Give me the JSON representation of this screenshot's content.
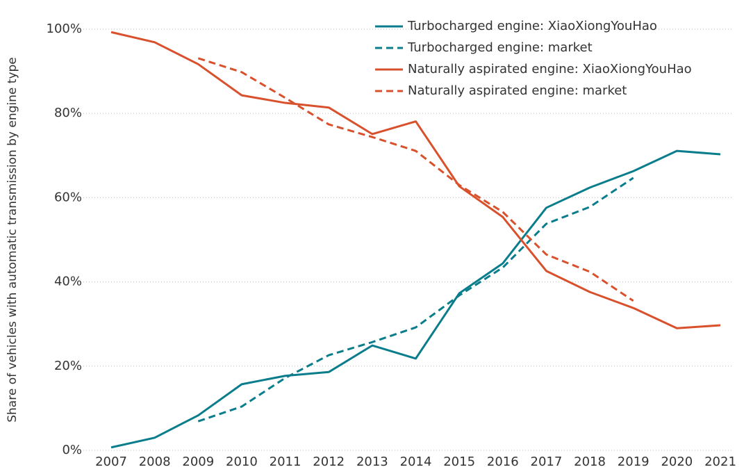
{
  "chart_data": {
    "type": "line",
    "y_label": "Share of vehicles with automatic transmission by engine type",
    "x": [
      2007,
      2008,
      2009,
      2010,
      2011,
      2012,
      2013,
      2014,
      2015,
      2016,
      2017,
      2018,
      2019,
      2020,
      2021
    ],
    "xlim": [
      2007,
      2021
    ],
    "xticks": [
      2007,
      2008,
      2009,
      2010,
      2011,
      2012,
      2013,
      2014,
      2015,
      2016,
      2017,
      2018,
      2019,
      2020,
      2021
    ],
    "ylim": [
      0,
      100
    ],
    "yticks": [
      {
        "value": 0,
        "label": "0%"
      },
      {
        "value": 20,
        "label": "20%"
      },
      {
        "value": 40,
        "label": "40%"
      },
      {
        "value": 60,
        "label": "60%"
      },
      {
        "value": 80,
        "label": "80%"
      },
      {
        "value": 100,
        "label": "100%"
      }
    ],
    "grid": true,
    "legend": "upper right",
    "series": [
      {
        "name": "Turbocharged engine: XiaoXiongYouHao",
        "color": "#0a7d8c",
        "style": "solid",
        "values": [
          0.7,
          3.0,
          8.3,
          15.7,
          17.7,
          18.6,
          24.9,
          21.8,
          37.3,
          44.4,
          57.6,
          62.4,
          66.3,
          71.1,
          70.3
        ]
      },
      {
        "name": "Turbocharged engine: market",
        "color": "#0a7d8c",
        "style": "dashed",
        "values": [
          null,
          null,
          6.9,
          10.4,
          17.2,
          22.6,
          25.7,
          29.2,
          36.8,
          43.4,
          53.8,
          57.8,
          64.7,
          null,
          null
        ]
      },
      {
        "name": "Naturally aspirated engine: XiaoXiongYouHao",
        "color": "#d9512c",
        "style": "solid",
        "values": [
          99.3,
          96.9,
          91.7,
          84.3,
          82.5,
          81.4,
          75.1,
          78.1,
          62.7,
          55.4,
          42.6,
          37.6,
          33.8,
          29.0,
          29.7
        ]
      },
      {
        "name": "Naturally aspirated engine: market",
        "color": "#d9512c",
        "style": "dashed",
        "values": [
          null,
          null,
          93.1,
          89.8,
          83.7,
          77.4,
          74.4,
          71.1,
          63.0,
          56.6,
          46.5,
          42.4,
          35.5,
          null,
          null
        ]
      }
    ]
  }
}
